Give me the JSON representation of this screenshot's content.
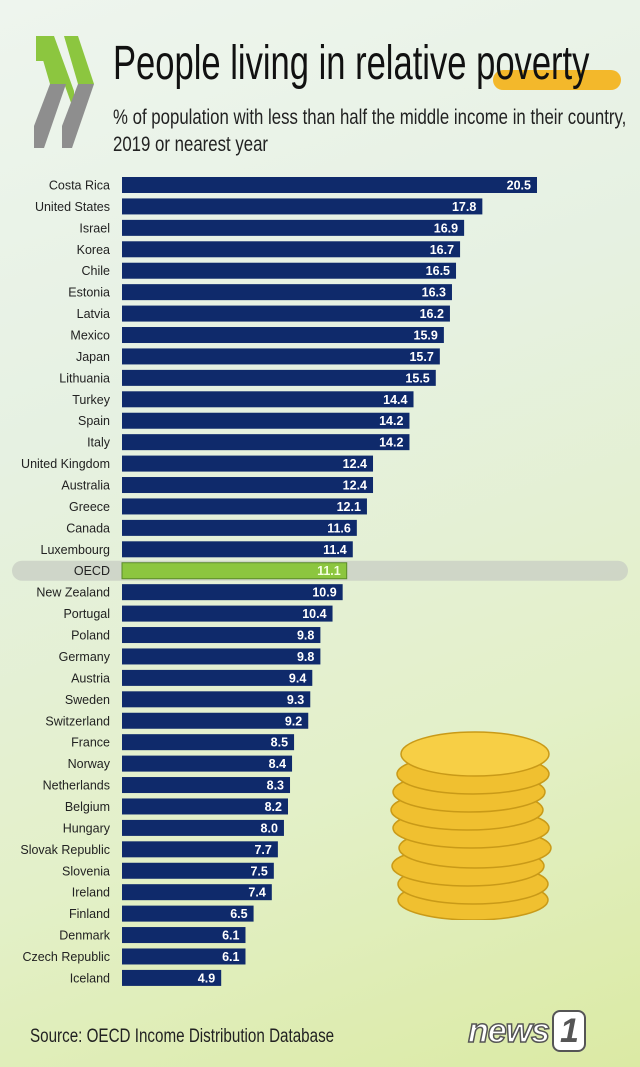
{
  "header": {
    "title_main": "People living in relative",
    "title_highlight": "poverty",
    "subtitle": "% of population with less than half the middle income in their country, 2019 or nearest year"
  },
  "footer": {
    "source": "Source: OECD Income Distribution Database",
    "watermark": "news1"
  },
  "colors": {
    "bar": "#0f2a6b",
    "highlight_bar": "#8cc63f",
    "highlight_band": "#c9cfc4",
    "accent": "#f3b82b",
    "coin": "#f0c030"
  },
  "chart_data": {
    "type": "bar",
    "orientation": "horizontal",
    "title": "People living in relative poverty",
    "subtitle": "% of population with less than half the middle income in their country, 2019 or nearest year",
    "xlim": [
      0,
      20.5
    ],
    "grid": false,
    "highlight": "OECD",
    "categories": [
      "Costa Rica",
      "United States",
      "Israel",
      "Korea",
      "Chile",
      "Estonia",
      "Latvia",
      "Mexico",
      "Japan",
      "Lithuania",
      "Turkey",
      "Spain",
      "Italy",
      "United Kingdom",
      "Australia",
      "Greece",
      "Canada",
      "Luxembourg",
      "OECD",
      "New Zealand",
      "Portugal",
      "Poland",
      "Germany",
      "Austria",
      "Sweden",
      "Switzerland",
      "France",
      "Norway",
      "Netherlands",
      "Belgium",
      "Hungary",
      "Slovak Republic",
      "Slovenia",
      "Ireland",
      "Finland",
      "Denmark",
      "Czech Republic",
      "Iceland"
    ],
    "values": [
      20.5,
      17.8,
      16.9,
      16.7,
      16.5,
      16.3,
      16.2,
      15.9,
      15.7,
      15.5,
      14.4,
      14.2,
      14.2,
      12.4,
      12.4,
      12.1,
      11.6,
      11.4,
      11.1,
      10.9,
      10.4,
      9.8,
      9.8,
      9.4,
      9.3,
      9.2,
      8.5,
      8.4,
      8.3,
      8.2,
      8.0,
      7.7,
      7.5,
      7.4,
      6.5,
      6.1,
      6.1,
      4.9
    ],
    "labels": [
      "20.5",
      "17.8",
      "16.9",
      "16.7",
      "16.5",
      "16.3",
      "16.2",
      "15.9",
      "15.7",
      "15.5",
      "14.4",
      "14.2",
      "14.2",
      "12.4",
      "12.4",
      "12.1",
      "11.6",
      "11.4",
      "11.1",
      "10.9",
      "10.4",
      "9.8",
      "9.8",
      "9.4",
      "9.3",
      "9.2",
      "8.5",
      "8.4",
      "8.3",
      "8.2",
      "8.0",
      "7.7",
      "7.5",
      "7.4",
      "6.5",
      "6.1",
      "6.1",
      "4.9"
    ]
  }
}
